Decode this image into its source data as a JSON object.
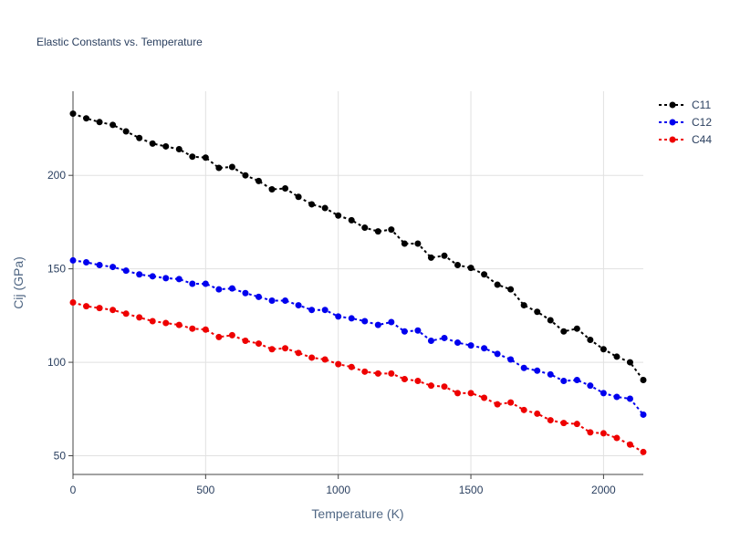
{
  "chart_data": {
    "type": "line",
    "title": "Elastic Constants vs. Temperature",
    "xlabel": "Temperature (K)",
    "ylabel": "Cij (GPa)",
    "xlim": [
      0,
      2150
    ],
    "ylim": [
      40,
      245
    ],
    "x_ticks": [
      0,
      500,
      1000,
      1500,
      2000
    ],
    "y_ticks": [
      50,
      100,
      150,
      200
    ],
    "grid": true,
    "legend_position": "top-right",
    "line_style": "dotted",
    "x": [
      0,
      50,
      100,
      150,
      200,
      250,
      300,
      350,
      400,
      450,
      500,
      550,
      600,
      650,
      700,
      750,
      800,
      850,
      900,
      950,
      1000,
      1050,
      1100,
      1150,
      1200,
      1250,
      1300,
      1350,
      1400,
      1450,
      1500,
      1550,
      1600,
      1650,
      1700,
      1750,
      1800,
      1850,
      1900,
      1950,
      2000,
      2050,
      2100,
      2150
    ],
    "series": [
      {
        "name": "C11",
        "color": "#000000",
        "values": [
          233,
          230.5,
          228.5,
          227,
          223.5,
          220,
          217,
          215.5,
          214,
          210,
          209.5,
          204,
          204.5,
          200,
          197,
          192.5,
          193,
          188.5,
          184.5,
          182.5,
          178.5,
          176,
          172,
          170,
          171,
          163.5,
          163.5,
          156,
          157,
          152,
          150.5,
          147,
          141.5,
          139,
          130.5,
          127,
          122.5,
          116.5,
          118,
          112,
          107,
          103,
          100,
          90.5
        ]
      },
      {
        "name": "C12",
        "color": "#0000ee",
        "values": [
          154.5,
          153.5,
          152,
          151,
          149,
          147,
          146,
          145,
          144.5,
          142,
          142,
          139,
          139.5,
          137,
          135,
          133,
          133,
          130.5,
          128,
          128,
          124.5,
          123.5,
          122,
          120,
          121.5,
          116.5,
          117,
          111.5,
          113,
          110.5,
          109,
          107.5,
          104.5,
          101.5,
          97,
          95.5,
          93.5,
          90,
          90.5,
          87.5,
          83.5,
          81.5,
          80.5,
          72
        ]
      },
      {
        "name": "C44",
        "color": "#ee0000",
        "values": [
          132,
          130,
          129,
          128,
          126,
          124,
          122,
          121,
          120,
          118,
          117.5,
          113.5,
          114.5,
          111.5,
          110,
          107,
          107.5,
          105,
          102.5,
          101.5,
          99,
          97.5,
          95,
          94,
          94,
          91,
          90,
          87.5,
          87,
          83.5,
          83.5,
          81,
          77.5,
          78.5,
          74.5,
          72.5,
          69,
          67.5,
          67,
          62.5,
          62,
          59.5,
          56,
          52
        ]
      }
    ]
  }
}
